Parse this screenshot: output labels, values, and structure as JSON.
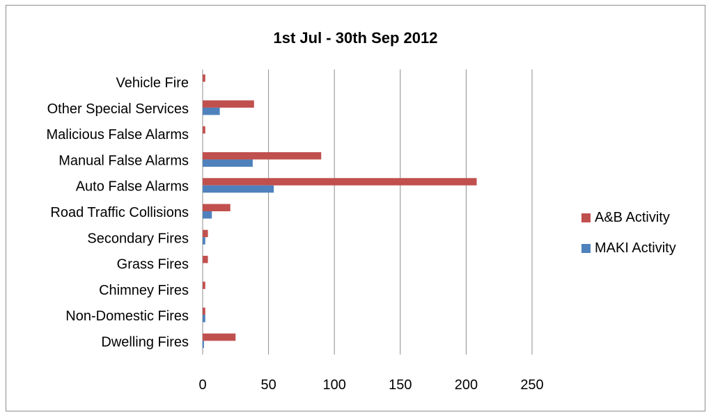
{
  "chart_data": {
    "type": "bar",
    "orientation": "horizontal",
    "title": "1st Jul - 30th Sep 2012",
    "xlabel": "",
    "ylabel": "",
    "categories": [
      "Vehicle Fire",
      "Other Special Services",
      "Malicious False Alarms",
      "Manual False Alarms",
      "Auto False Alarms",
      "Road Traffic Collisions",
      "Secondary Fires",
      "Grass Fires",
      "Chimney Fires",
      "Non-Domestic Fires",
      "Dwelling Fires"
    ],
    "series": [
      {
        "name": "A&B Activity",
        "color": "#C0504D",
        "values": [
          2,
          39,
          2,
          90,
          208,
          21,
          4,
          4,
          2,
          2,
          25
        ]
      },
      {
        "name": "MAKI Activity",
        "color": "#4F81BD",
        "values": [
          0,
          13,
          0,
          38,
          54,
          7,
          2,
          0,
          0,
          2,
          1
        ]
      }
    ],
    "xlim": [
      0,
      250
    ],
    "xticks": [
      0,
      50,
      100,
      150,
      200,
      250
    ],
    "grid": "vertical",
    "legend_position": "right"
  }
}
